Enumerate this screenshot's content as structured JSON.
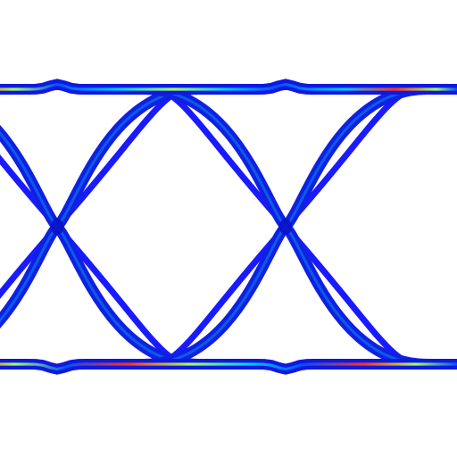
{
  "chart_data": {
    "type": "line",
    "kind": "eye-diagram-density",
    "title": "",
    "xlabel": "",
    "ylabel": "",
    "xlim": [
      0,
      2
    ],
    "ylim": [
      -1.25,
      1.25
    ],
    "unit_intervals_shown": 2,
    "crossing_points": [
      {
        "x": 0.5,
        "y": 0.0
      },
      {
        "x": 1.5,
        "y": 0.0
      }
    ],
    "logic_levels": [
      1.0,
      -1.0
    ],
    "rise_time_ui": 0.42,
    "fall_time_ui": 0.42,
    "level_ripple": 0.03,
    "series": [
      {
        "trace": "high-to-high",
        "density": "high",
        "x": [
          0.0,
          0.5,
          1.0,
          1.5,
          2.0
        ],
        "y": [
          1.0,
          1.0,
          1.0,
          1.0,
          1.0
        ]
      },
      {
        "trace": "low-to-low",
        "density": "high",
        "x": [
          0.0,
          0.5,
          1.0,
          1.5,
          2.0
        ],
        "y": [
          -1.0,
          -1.0,
          -1.0,
          -1.0,
          -1.0
        ]
      },
      {
        "trace": "rising-edge",
        "density": "low",
        "x": [
          0.29,
          0.5,
          0.71
        ],
        "y": [
          -1.0,
          0.0,
          1.0
        ]
      },
      {
        "trace": "falling-edge",
        "density": "low",
        "x": [
          0.29,
          0.5,
          0.71
        ],
        "y": [
          1.0,
          0.0,
          -1.0
        ]
      },
      {
        "trace": "rising-edge",
        "density": "low",
        "x": [
          1.29,
          1.5,
          1.71
        ],
        "y": [
          -1.0,
          0.0,
          1.0
        ]
      },
      {
        "trace": "falling-edge",
        "density": "low",
        "x": [
          1.29,
          1.5,
          1.71
        ],
        "y": [
          1.0,
          0.0,
          -1.0
        ]
      }
    ],
    "grid": false,
    "legend": "none",
    "colormap": {
      "low": "#1a1aff",
      "mid": "#00c8ff",
      "high_mid": "#a0ff60",
      "peak": "#ff3020"
    }
  }
}
